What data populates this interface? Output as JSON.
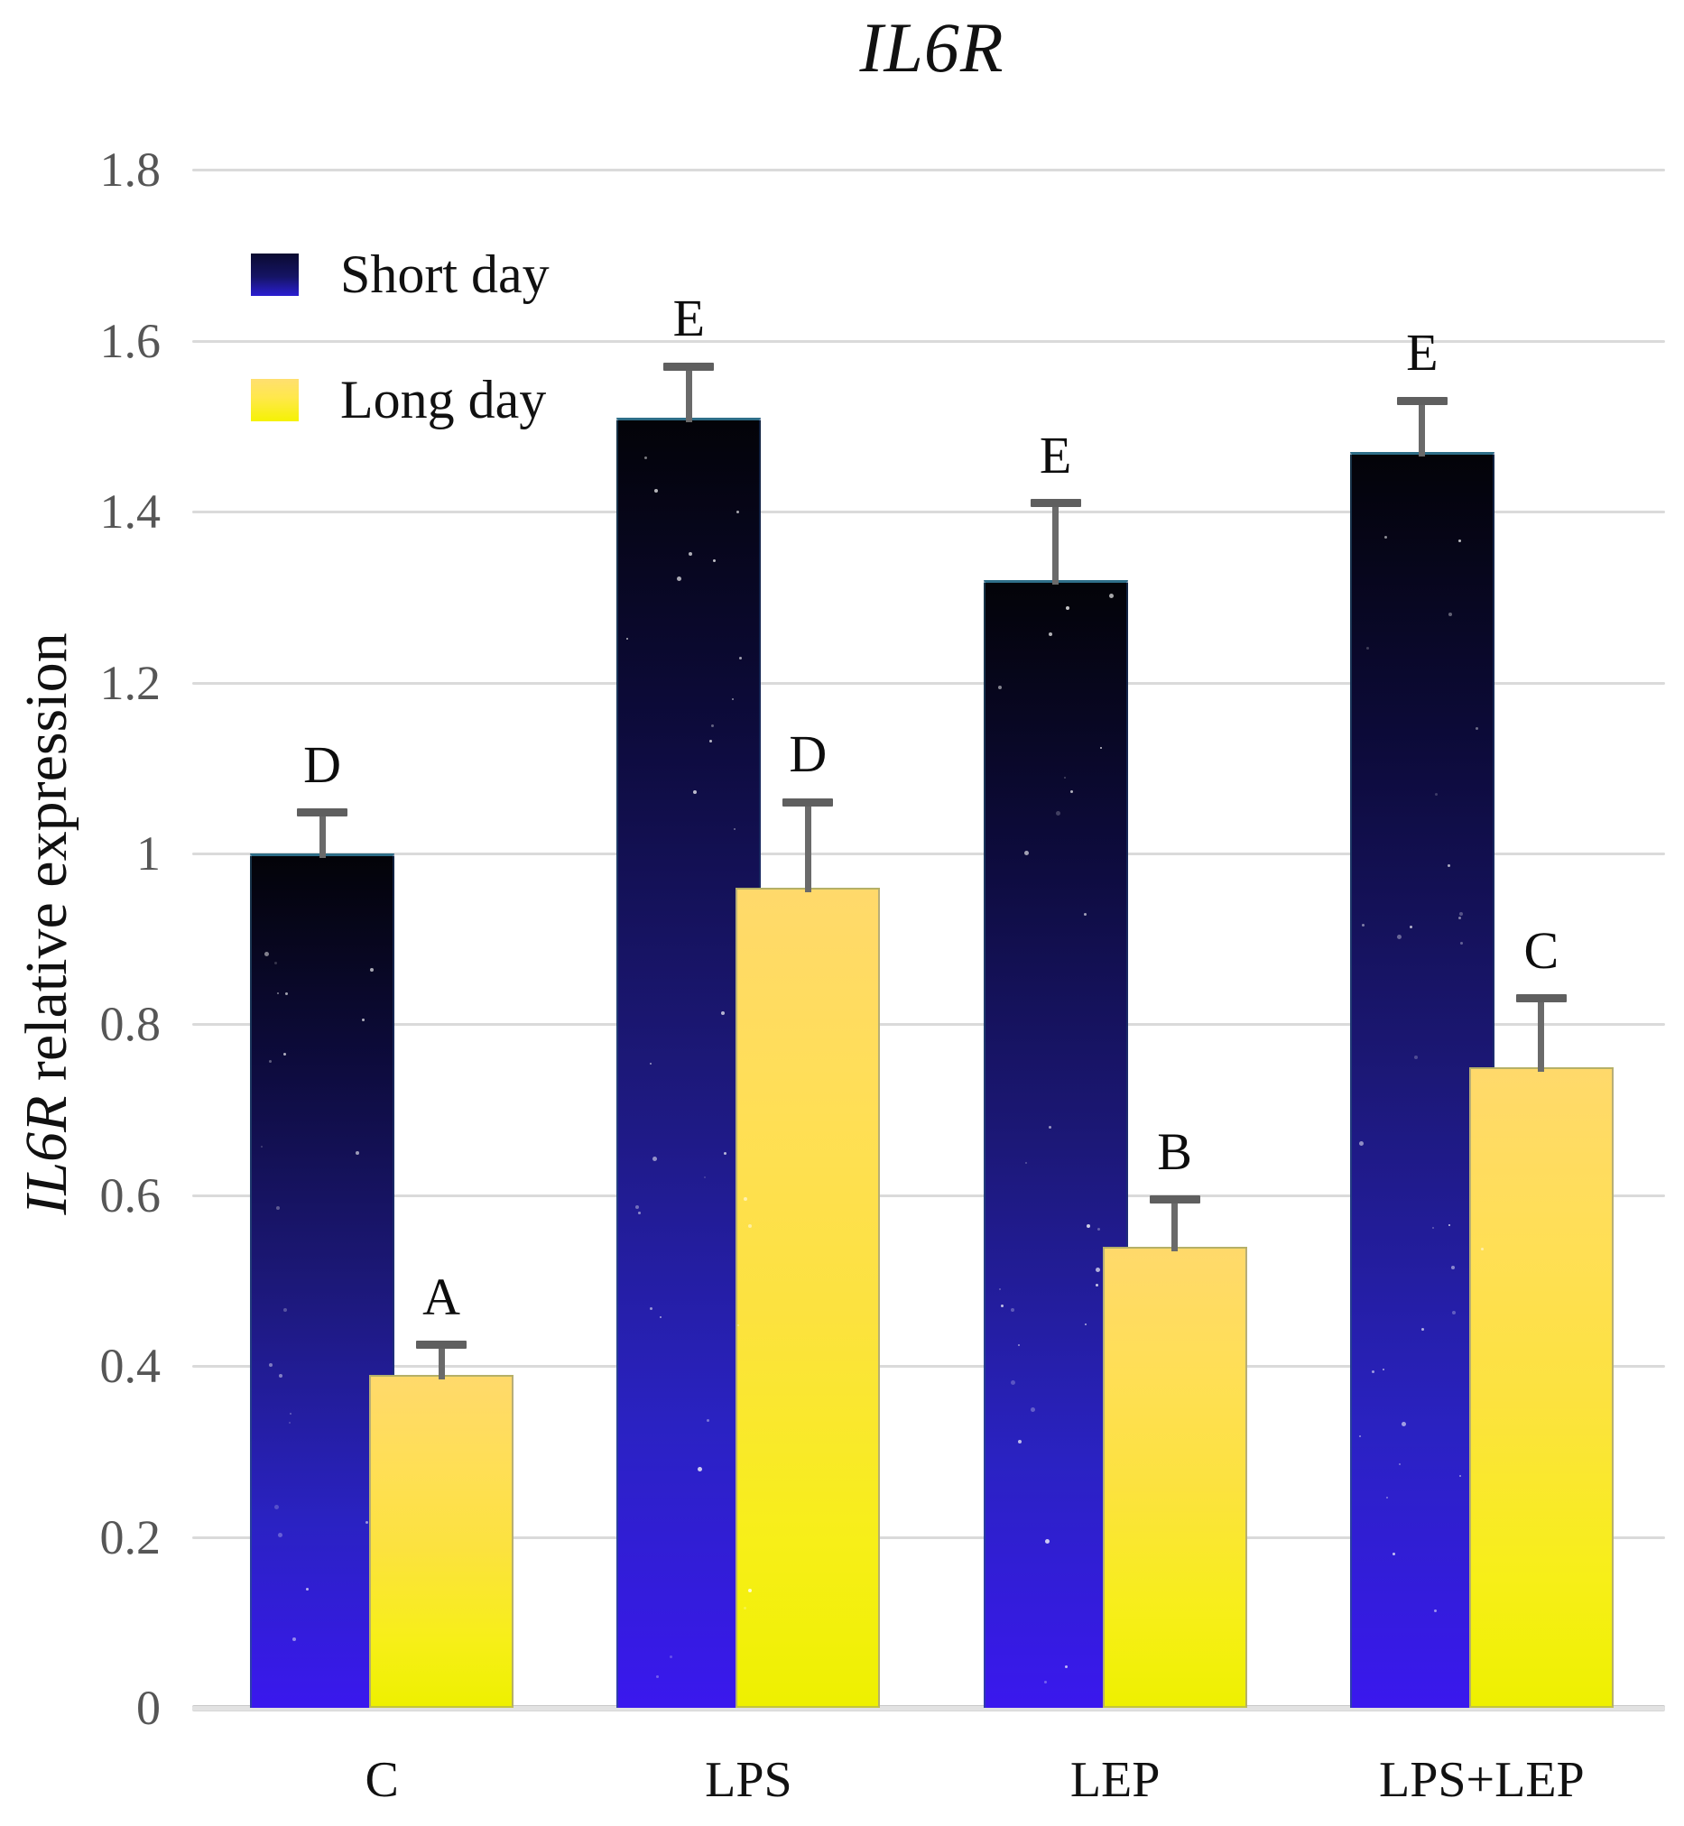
{
  "title": "IL6R",
  "y_axis": {
    "label_italic": "IL6R",
    "label_rest": " relative expression",
    "tick_labels": [
      "0",
      "0.2",
      "0.4",
      "0.6",
      "0.8",
      "1",
      "1.2",
      "1.4",
      "1.6",
      "1.8"
    ]
  },
  "legend": {
    "items": [
      {
        "label": "Short day"
      },
      {
        "label": "Long day"
      }
    ]
  },
  "chart_data": {
    "type": "bar",
    "title": "IL6R",
    "xlabel": "",
    "ylabel": "IL6R relative expression",
    "categories": [
      "C",
      "LPS",
      "LEP",
      "LPS+LEP"
    ],
    "series": [
      {
        "name": "Short day",
        "values": [
          1.0,
          1.51,
          1.32,
          1.47
        ],
        "errors": [
          0.048,
          0.06,
          0.09,
          0.06
        ],
        "sig_letters": [
          "D",
          "E",
          "E",
          "E"
        ]
      },
      {
        "name": "Long day",
        "values": [
          0.39,
          0.96,
          0.54,
          0.75
        ],
        "errors": [
          0.035,
          0.1,
          0.055,
          0.08
        ],
        "sig_letters": [
          "A",
          "D",
          "B",
          "C"
        ]
      }
    ],
    "ylim": [
      0,
      1.8
    ],
    "yticks": [
      0,
      0.2,
      0.4,
      0.6,
      0.8,
      1,
      1.2,
      1.4,
      1.6,
      1.8
    ],
    "grid": true,
    "legend_position": "top-left"
  },
  "colors": {
    "short_day_gradient": [
      "#030308",
      "#0d0b3c",
      "#1c1878",
      "#2a22c2",
      "#3a18ee"
    ],
    "long_day_gradient": [
      "#ffd96b",
      "#ffdf55",
      "#fce23f",
      "#f7ef18",
      "#eef000"
    ],
    "error_bar": "#5f5f5f",
    "gridline": "#dadada",
    "tick_text": "#565656",
    "text": "#111111"
  }
}
